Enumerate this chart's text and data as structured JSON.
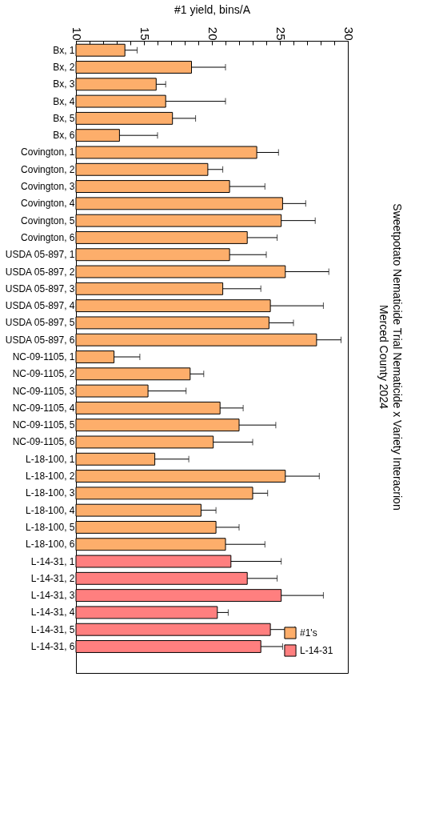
{
  "chart_data": {
    "type": "bar",
    "orientation": "horizontal",
    "title": "Sweetpotato Nematicide Trial Nematicide x Variety Interacrion",
    "subtitle": "Merced County 2024",
    "xlabel": "#1 yield, bins/A",
    "categories": [
      "Bx, 1",
      "Bx, 2",
      "Bx, 3",
      "Bx, 4",
      "Bx, 5",
      "Bx, 6",
      "Covington, 1",
      "Covington, 2",
      "Covington, 3",
      "Covington, 4",
      "Covington, 5",
      "Covington, 6",
      "USDA 05-897, 1",
      "USDA 05-897, 2",
      "USDA 05-897, 3",
      "USDA 05-897, 4",
      "USDA 05-897, 5",
      "USDA 05-897, 6",
      "NC-09-1105, 1",
      "NC-09-1105, 2",
      "NC-09-1105, 3",
      "NC-09-1105, 4",
      "NC-09-1105, 5",
      "NC-09-1105, 6",
      "L-18-100, 1",
      "L-18-100, 2",
      "L-18-100, 3",
      "L-18-100, 4",
      "L-18-100, 5",
      "L-18-100, 6",
      "L-14-31, 1",
      "L-14-31, 2",
      "L-14-31, 3",
      "L-14-31, 4",
      "L-14-31, 5",
      "L-14-31, 6",
      null
    ],
    "series": [
      {
        "name": "#1's",
        "color": "#fdae6b",
        "values": [
          13.6,
          18.5,
          15.9,
          16.6,
          17.1,
          13.2,
          23.3,
          19.7,
          21.3,
          25.2,
          25.1,
          22.6,
          21.3,
          25.4,
          20.8,
          24.3,
          24.2,
          27.7,
          12.8,
          18.4,
          15.3,
          20.6,
          22.0,
          20.1,
          15.8,
          25.4,
          23.0,
          19.2,
          20.3,
          21.0,
          null,
          null,
          null,
          null,
          null,
          null,
          null
        ],
        "errors": [
          [
            13.6,
            14.5
          ],
          [
            18.5,
            21.0
          ],
          [
            15.9,
            16.6
          ],
          [
            16.6,
            21.0
          ],
          [
            17.1,
            18.8
          ],
          [
            13.2,
            16.0
          ],
          [
            23.3,
            24.9
          ],
          [
            19.7,
            20.8
          ],
          [
            21.3,
            23.9
          ],
          [
            25.2,
            26.9
          ],
          [
            25.1,
            27.6
          ],
          [
            22.6,
            24.8
          ],
          [
            21.3,
            24.0
          ],
          [
            25.4,
            28.6
          ],
          [
            20.8,
            23.6
          ],
          [
            24.3,
            28.2
          ],
          [
            24.2,
            26.0
          ],
          [
            27.7,
            29.5
          ],
          [
            12.8,
            14.7
          ],
          [
            18.4,
            19.4
          ],
          [
            15.3,
            18.1
          ],
          [
            20.6,
            22.3
          ],
          [
            22.0,
            24.7
          ],
          [
            20.1,
            23.0
          ],
          [
            15.8,
            18.3
          ],
          [
            25.4,
            27.9
          ],
          [
            23.0,
            24.1
          ],
          [
            19.2,
            20.3
          ],
          [
            20.3,
            22.0
          ],
          [
            21.0,
            23.9
          ],
          null,
          null,
          null,
          null,
          null,
          null,
          null
        ]
      },
      {
        "name": "L-14-31",
        "color": "#ff7f7f",
        "values": [
          null,
          null,
          null,
          null,
          null,
          null,
          null,
          null,
          null,
          null,
          null,
          null,
          null,
          null,
          null,
          null,
          null,
          null,
          null,
          null,
          null,
          null,
          null,
          null,
          null,
          null,
          null,
          null,
          null,
          null,
          21.4,
          22.6,
          25.1,
          20.4,
          24.3,
          23.6,
          null
        ],
        "errors": [
          null,
          null,
          null,
          null,
          null,
          null,
          null,
          null,
          null,
          null,
          null,
          null,
          null,
          null,
          null,
          null,
          null,
          null,
          null,
          null,
          null,
          null,
          null,
          null,
          null,
          null,
          null,
          null,
          null,
          null,
          [
            21.4,
            25.1
          ],
          [
            22.6,
            24.8
          ],
          [
            25.1,
            28.2
          ],
          [
            20.4,
            21.2
          ],
          [
            24.3,
            26.1
          ],
          [
            23.6,
            25.2
          ],
          null
        ]
      }
    ],
    "xlim": [
      10,
      30
    ],
    "xticks": [
      10,
      {
        "value": 11,
        "label": null
      },
      {
        "value": 12,
        "label": null
      },
      {
        "value": 13,
        "label": null
      },
      {
        "value": 14,
        "label": null
      },
      15,
      {
        "value": 16,
        "label": null
      },
      {
        "value": 17,
        "label": null
      },
      {
        "value": 18,
        "label": null
      },
      {
        "value": 19,
        "label": null
      },
      20,
      {
        "value": 21,
        "label": null
      },
      {
        "value": 22,
        "label": null
      },
      {
        "value": 23,
        "label": null
      },
      {
        "value": 24,
        "label": null
      },
      25,
      {
        "value": 26,
        "label": null
      },
      {
        "value": 27,
        "label": null
      },
      {
        "value": 28,
        "label": null
      },
      {
        "value": 29,
        "label": null
      },
      30
    ],
    "grid": false,
    "legend": "bottom right"
  }
}
